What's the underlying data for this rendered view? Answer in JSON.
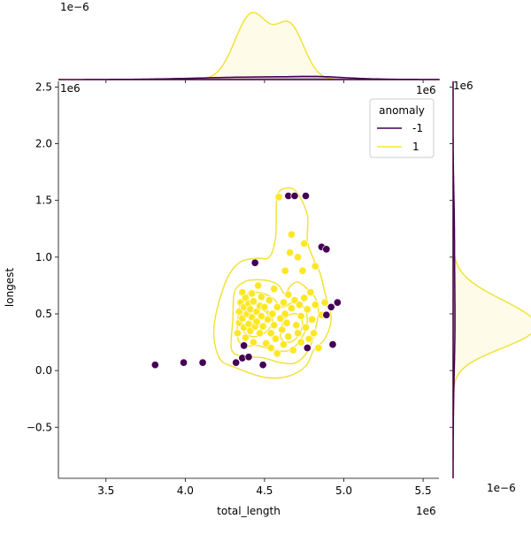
{
  "chart_data": {
    "type": "scatter",
    "xlabel": "total_length",
    "ylabel": "longest",
    "x_offset_label": "1e6",
    "y_offset_label": "1e6",
    "top_marginal_offset": "1e−6",
    "right_marginal_offset": "1e−6",
    "x_tick_labels": [
      "3.5",
      "4.0",
      "4.5",
      "5.0",
      "5.5"
    ],
    "x_ticks": [
      3.5,
      4.0,
      4.5,
      5.0,
      5.5
    ],
    "y_tick_labels": [
      "−0.5",
      "0.0",
      "0.5",
      "1.0",
      "1.5",
      "2.0",
      "2.5"
    ],
    "y_ticks": [
      -0.5,
      0.0,
      0.5,
      1.0,
      1.5,
      2.0,
      2.5
    ],
    "xlim": [
      3.2,
      5.6
    ],
    "ylim": [
      -0.95,
      2.55
    ],
    "legend": {
      "title": "anomaly",
      "placement": "top-right",
      "entries": [
        {
          "label": "-1",
          "color": "#440154"
        },
        {
          "label": "1",
          "color": "#fde725"
        }
      ]
    },
    "colors": {
      "anomaly": "#440154",
      "normal": "#fde725",
      "kde_line": "#f2e23a",
      "kde_fill": "#fcf4b4"
    },
    "series": [
      {
        "name": "-1",
        "points": [
          [
            3.81,
            0.05
          ],
          [
            3.99,
            0.07
          ],
          [
            4.11,
            0.07
          ],
          [
            4.32,
            0.07
          ],
          [
            4.36,
            0.11
          ],
          [
            4.37,
            0.22
          ],
          [
            4.4,
            0.12
          ],
          [
            4.44,
            0.95
          ],
          [
            4.49,
            0.05
          ],
          [
            4.65,
            1.54
          ],
          [
            4.69,
            1.54
          ],
          [
            4.76,
            1.54
          ],
          [
            4.77,
            0.2
          ],
          [
            4.86,
            1.09
          ],
          [
            4.89,
            1.07
          ],
          [
            4.89,
            0.49
          ],
          [
            4.92,
            0.56
          ],
          [
            4.93,
            0.23
          ],
          [
            4.96,
            0.6
          ]
        ]
      },
      {
        "name": "1",
        "points": [
          [
            4.33,
            0.33
          ],
          [
            4.34,
            0.42
          ],
          [
            4.34,
            0.52
          ],
          [
            4.35,
            0.6
          ],
          [
            4.36,
            0.69
          ],
          [
            4.36,
            0.46
          ],
          [
            4.37,
            0.38
          ],
          [
            4.37,
            0.56
          ],
          [
            4.38,
            0.29
          ],
          [
            4.38,
            0.64
          ],
          [
            4.39,
            0.5
          ],
          [
            4.4,
            0.41
          ],
          [
            4.4,
            0.59
          ],
          [
            4.41,
            0.35
          ],
          [
            4.41,
            0.54
          ],
          [
            4.42,
            0.47
          ],
          [
            4.42,
            0.68
          ],
          [
            4.43,
            0.25
          ],
          [
            4.43,
            0.61
          ],
          [
            4.44,
            0.39
          ],
          [
            4.45,
            0.52
          ],
          [
            4.45,
            0.43
          ],
          [
            4.46,
            0.75
          ],
          [
            4.47,
            0.57
          ],
          [
            4.47,
            0.33
          ],
          [
            4.48,
            0.48
          ],
          [
            4.48,
            0.65
          ],
          [
            4.49,
            0.39
          ],
          [
            4.5,
            0.56
          ],
          [
            4.51,
            0.24
          ],
          [
            4.52,
            0.45
          ],
          [
            4.53,
            0.62
          ],
          [
            4.54,
            0.33
          ],
          [
            4.54,
            0.2
          ],
          [
            4.55,
            0.5
          ],
          [
            4.56,
            0.72
          ],
          [
            4.56,
            0.4
          ],
          [
            4.57,
            0.28
          ],
          [
            4.58,
            0.56
          ],
          [
            4.58,
            0.15
          ],
          [
            4.59,
            1.53
          ],
          [
            4.6,
            0.46
          ],
          [
            4.61,
            0.36
          ],
          [
            4.62,
            0.6
          ],
          [
            4.62,
            0.23
          ],
          [
            4.63,
            0.88
          ],
          [
            4.63,
            0.5
          ],
          [
            4.64,
            0.42
          ],
          [
            4.65,
            0.3
          ],
          [
            4.65,
            0.67
          ],
          [
            4.66,
            1.04
          ],
          [
            4.67,
            0.55
          ],
          [
            4.67,
            1.2
          ],
          [
            4.68,
            0.18
          ],
          [
            4.69,
            0.62
          ],
          [
            4.7,
            0.4
          ],
          [
            4.71,
            1.0
          ],
          [
            4.71,
            0.33
          ],
          [
            4.72,
            0.58
          ],
          [
            4.73,
            0.48
          ],
          [
            4.73,
            0.25
          ],
          [
            4.74,
            0.88
          ],
          [
            4.75,
            0.64
          ],
          [
            4.75,
            1.12
          ],
          [
            4.76,
            0.38
          ],
          [
            4.77,
            0.54
          ],
          [
            4.78,
            0.28
          ],
          [
            4.79,
            0.69
          ],
          [
            4.8,
            0.45
          ],
          [
            4.81,
            0.33
          ],
          [
            4.82,
            0.92
          ],
          [
            4.82,
            0.58
          ],
          [
            4.84,
            0.2
          ],
          [
            4.86,
            0.49
          ],
          [
            4.88,
            0.6
          ]
        ]
      }
    ],
    "kde_levels": [
      [
        [
          4.29,
          0.2
        ],
        [
          4.3,
          0.45
        ],
        [
          4.31,
          0.69
        ],
        [
          4.37,
          0.78
        ],
        [
          4.44,
          0.8
        ],
        [
          4.53,
          0.79
        ],
        [
          4.59,
          0.75
        ],
        [
          4.63,
          0.67
        ],
        [
          4.66,
          0.74
        ],
        [
          4.71,
          0.78
        ],
        [
          4.77,
          0.72
        ],
        [
          4.82,
          0.64
        ],
        [
          4.84,
          0.52
        ],
        [
          4.82,
          0.36
        ],
        [
          4.78,
          0.19
        ],
        [
          4.7,
          0.07
        ],
        [
          4.6,
          0.07
        ],
        [
          4.5,
          0.11
        ],
        [
          4.42,
          0.12
        ],
        [
          4.34,
          0.13
        ]
      ],
      [
        [
          4.33,
          0.29
        ],
        [
          4.34,
          0.54
        ],
        [
          4.38,
          0.66
        ],
        [
          4.46,
          0.69
        ],
        [
          4.55,
          0.64
        ],
        [
          4.61,
          0.56
        ],
        [
          4.68,
          0.6
        ],
        [
          4.74,
          0.57
        ],
        [
          4.77,
          0.45
        ],
        [
          4.74,
          0.3
        ],
        [
          4.66,
          0.18
        ],
        [
          4.56,
          0.18
        ],
        [
          4.46,
          0.22
        ],
        [
          4.38,
          0.22
        ]
      ],
      [
        [
          4.36,
          0.37
        ],
        [
          4.37,
          0.55
        ],
        [
          4.43,
          0.6
        ],
        [
          4.51,
          0.54
        ],
        [
          4.55,
          0.43
        ],
        [
          4.5,
          0.33
        ],
        [
          4.42,
          0.3
        ]
      ],
      [
        [
          4.6,
          0.3
        ],
        [
          4.63,
          0.46
        ],
        [
          4.7,
          0.5
        ],
        [
          4.74,
          0.42
        ],
        [
          4.71,
          0.3
        ],
        [
          4.65,
          0.25
        ]
      ],
      [
        [
          4.42,
          0.47
        ],
        [
          4.46,
          0.54
        ],
        [
          4.52,
          0.5
        ],
        [
          4.5,
          0.42
        ],
        [
          4.45,
          0.41
        ]
      ]
    ],
    "kde_outer": [
      [
        4.31,
        0.03
      ],
      [
        4.5,
        -0.06
      ],
      [
        4.65,
        -0.05
      ],
      [
        4.76,
        0.04
      ],
      [
        4.81,
        0.18
      ],
      [
        4.88,
        0.28
      ],
      [
        4.92,
        0.46
      ],
      [
        4.88,
        0.69
      ],
      [
        4.85,
        0.86
      ],
      [
        4.81,
        0.98
      ],
      [
        4.77,
        1.14
      ],
      [
        4.77,
        1.37
      ],
      [
        4.71,
        1.56
      ],
      [
        4.65,
        1.61
      ],
      [
        4.58,
        1.54
      ],
      [
        4.57,
        1.18
      ],
      [
        4.53,
        1.0
      ],
      [
        4.45,
        0.99
      ],
      [
        4.35,
        0.96
      ],
      [
        4.27,
        0.83
      ],
      [
        4.2,
        0.54
      ],
      [
        4.18,
        0.3
      ],
      [
        4.22,
        0.1
      ]
    ],
    "marginal_x": {
      "normal_peaks": [
        [
          4.42,
          0.105,
          1.0
        ],
        [
          4.66,
          0.09,
          0.8
        ]
      ],
      "anomaly_peaks": [
        [
          4.5,
          0.4,
          0.04
        ],
        [
          4.85,
          0.15,
          0.02
        ]
      ]
    },
    "marginal_y": {
      "normal_peaks": [
        [
          0.47,
          0.2,
          1.0
        ],
        [
          0.3,
          0.15,
          0.5
        ]
      ],
      "anomaly_peaks": [
        [
          0.45,
          0.45,
          0.03
        ],
        [
          1.3,
          0.3,
          0.015
        ]
      ]
    }
  }
}
